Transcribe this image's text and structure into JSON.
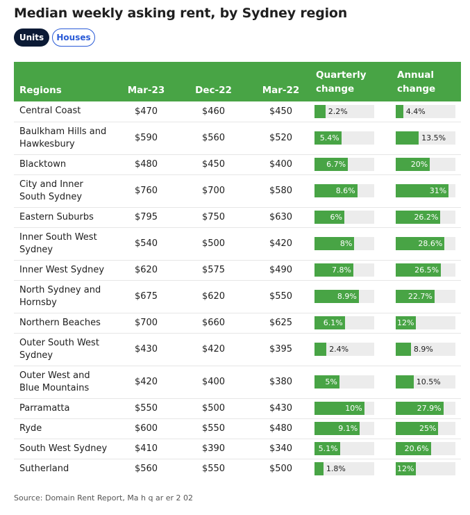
{
  "title": "Median weekly asking rent, by Sydney region",
  "toggles": {
    "units": "Units",
    "houses": "Houses"
  },
  "headers": {
    "regions": "Regions",
    "mar23": "Mar-23",
    "dec22": "Dec-22",
    "mar22": "Mar-22",
    "quarterly": [
      "Quarterly",
      "change"
    ],
    "annual": [
      "Annual",
      "change"
    ]
  },
  "source": "Source: Domain Rent Report, Ma h q ar er 2 02",
  "colors": {
    "header_bg": "#48a445",
    "bar": "#48a445",
    "track": "#ececec",
    "active_toggle": "#0b1a35",
    "toggle_outline": "#2a5bd7"
  },
  "chart_data": {
    "type": "table",
    "columns": [
      "Regions",
      "Mar-23",
      "Dec-22",
      "Mar-22",
      "Quarterly change",
      "Annual change"
    ],
    "bar_scale_max": {
      "quarterly": 12,
      "annual": 35
    },
    "rows": [
      {
        "region": [
          "Central Coast"
        ],
        "mar23": "$470",
        "dec22": "$460",
        "mar22": "$450",
        "quarterly": 2.2,
        "quarterly_label": "2.2%",
        "annual": 4.4,
        "annual_label": "4.4%"
      },
      {
        "region": [
          "Baulkham Hills and",
          "Hawkesbury"
        ],
        "mar23": "$590",
        "dec22": "$560",
        "mar22": "$520",
        "quarterly": 5.4,
        "quarterly_label": "5.4%",
        "annual": 13.5,
        "annual_label": "13.5%"
      },
      {
        "region": [
          "Blacktown"
        ],
        "mar23": "$480",
        "dec22": "$450",
        "mar22": "$400",
        "quarterly": 6.7,
        "quarterly_label": "6.7%",
        "annual": 20,
        "annual_label": "20%"
      },
      {
        "region": [
          "City and Inner",
          "South Sydney"
        ],
        "mar23": "$760",
        "dec22": "$700",
        "mar22": "$580",
        "quarterly": 8.6,
        "quarterly_label": "8.6%",
        "annual": 31,
        "annual_label": "31%"
      },
      {
        "region": [
          "Eastern Suburbs"
        ],
        "mar23": "$795",
        "dec22": "$750",
        "mar22": "$630",
        "quarterly": 6,
        "quarterly_label": "6%",
        "annual": 26.2,
        "annual_label": "26.2%"
      },
      {
        "region": [
          "Inner South West",
          "Sydney"
        ],
        "mar23": "$540",
        "dec22": "$500",
        "mar22": "$420",
        "quarterly": 8,
        "quarterly_label": "8%",
        "annual": 28.6,
        "annual_label": "28.6%"
      },
      {
        "region": [
          "Inner West Sydney"
        ],
        "mar23": "$620",
        "dec22": "$575",
        "mar22": "$490",
        "quarterly": 7.8,
        "quarterly_label": "7.8%",
        "annual": 26.5,
        "annual_label": "26.5%"
      },
      {
        "region": [
          "North Sydney and",
          "Hornsby"
        ],
        "mar23": "$675",
        "dec22": "$620",
        "mar22": "$550",
        "quarterly": 8.9,
        "quarterly_label": "8.9%",
        "annual": 22.7,
        "annual_label": "22.7%"
      },
      {
        "region": [
          "Northern Beaches"
        ],
        "mar23": "$700",
        "dec22": "$660",
        "mar22": "$625",
        "quarterly": 6.1,
        "quarterly_label": "6.1%",
        "annual": 12,
        "annual_label": "12%"
      },
      {
        "region": [
          "Outer South West",
          "Sydney"
        ],
        "mar23": "$430",
        "dec22": "$420",
        "mar22": "$395",
        "quarterly": 2.4,
        "quarterly_label": "2.4%",
        "annual": 8.9,
        "annual_label": "8.9%"
      },
      {
        "region": [
          "Outer West and",
          "Blue Mountains"
        ],
        "mar23": "$420",
        "dec22": "$400",
        "mar22": "$380",
        "quarterly": 5,
        "quarterly_label": "5%",
        "annual": 10.5,
        "annual_label": "10.5%"
      },
      {
        "region": [
          "Parramatta"
        ],
        "mar23": "$550",
        "dec22": "$500",
        "mar22": "$430",
        "quarterly": 10,
        "quarterly_label": "10%",
        "annual": 27.9,
        "annual_label": "27.9%"
      },
      {
        "region": [
          "Ryde"
        ],
        "mar23": "$600",
        "dec22": "$550",
        "mar22": "$480",
        "quarterly": 9.1,
        "quarterly_label": "9.1%",
        "annual": 25,
        "annual_label": "25%"
      },
      {
        "region": [
          "South West Sydney"
        ],
        "mar23": "$410",
        "dec22": "$390",
        "mar22": "$340",
        "quarterly": 5.1,
        "quarterly_label": "5.1%",
        "annual": 20.6,
        "annual_label": "20.6%"
      },
      {
        "region": [
          "Sutherland"
        ],
        "mar23": "$560",
        "dec22": "$550",
        "mar22": "$500",
        "quarterly": 1.8,
        "quarterly_label": "1.8%",
        "annual": 12,
        "annual_label": "12%"
      }
    ]
  }
}
